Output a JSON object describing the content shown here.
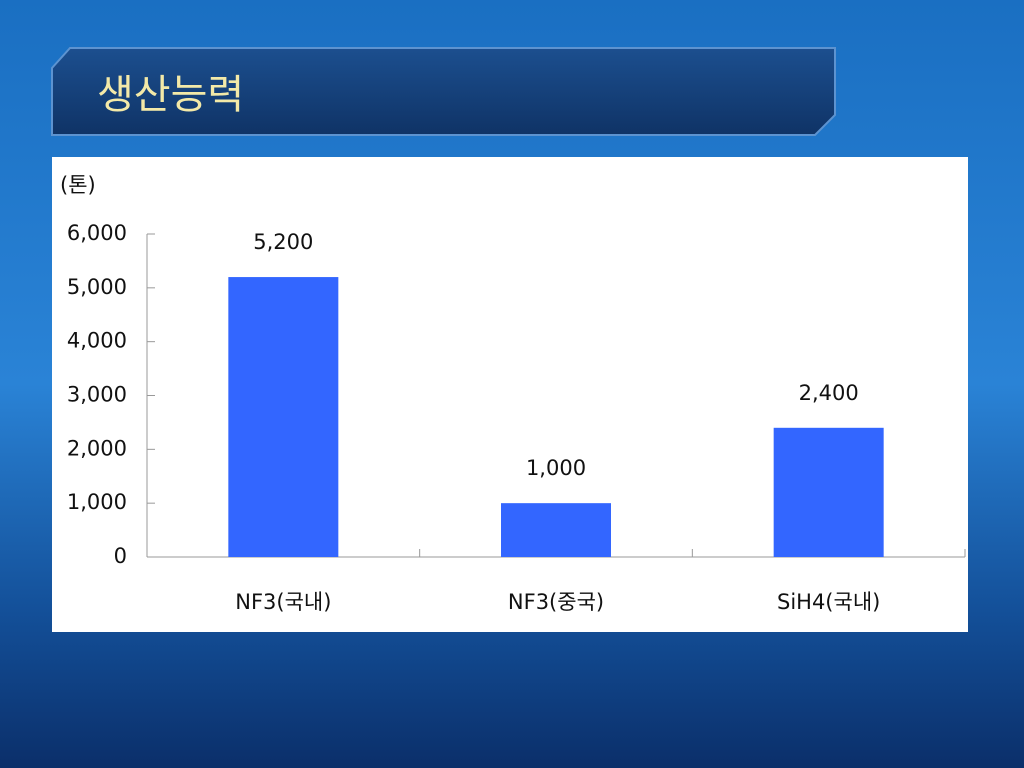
{
  "title": "생산능력",
  "chart_data": {
    "type": "bar",
    "y_label": "(톤)",
    "categories": [
      "NF3(국내)",
      "NF3(중국)",
      "SiH4(국내)"
    ],
    "values": [
      5200,
      1000,
      2400
    ],
    "value_labels": [
      "5,200",
      "1,000",
      "2,400"
    ],
    "color": "#3366ff",
    "ylim": [
      0,
      6000
    ],
    "yticks": [
      0,
      {
        "value": 1000,
        "label": "1,000"
      },
      {
        "value": 2000,
        "label": "2,000"
      },
      {
        "value": 3000,
        "label": "3,000"
      },
      {
        "value": 4000,
        "label": "4,000"
      },
      {
        "value": 5000,
        "label": "5,000"
      },
      {
        "value": 6000,
        "label": "6,000"
      }
    ],
    "grid": false
  }
}
